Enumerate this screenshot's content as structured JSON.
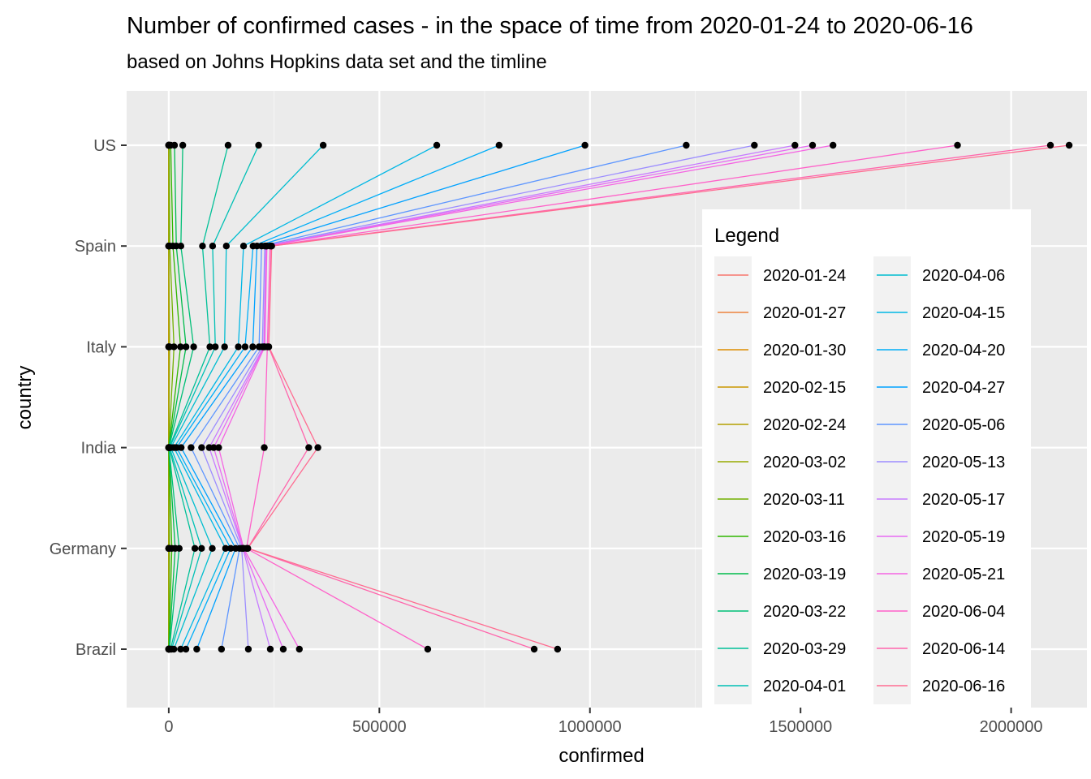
{
  "chart_data": {
    "type": "line",
    "title": "Number of confirmed cases - in the space of time from 2020-01-24 to 2020-06-16",
    "subtitle": "based on Johns Hopkins data set and the timline",
    "xlabel": "confirmed",
    "ylabel": "country",
    "xlim": [
      -100000,
      2180000
    ],
    "x_ticks": [
      0,
      500000,
      1000000,
      1500000,
      2000000
    ],
    "x_tick_labels": [
      "0",
      "500000",
      "1000000",
      "1500000",
      "2000000"
    ],
    "categories": [
      "US",
      "Spain",
      "Italy",
      "India",
      "Germany",
      "Brazil"
    ],
    "grid": true,
    "legend_title": "Legend",
    "legend_position": "right-inside",
    "series": [
      {
        "name": "2020-01-24",
        "color": "#F8766D",
        "values": [
          2,
          0,
          0,
          0,
          0,
          0
        ]
      },
      {
        "name": "2020-01-27",
        "color": "#EC823C",
        "values": [
          5,
          0,
          0,
          0,
          1,
          0
        ]
      },
      {
        "name": "2020-01-30",
        "color": "#DD8D00",
        "values": [
          6,
          0,
          0,
          1,
          4,
          0
        ]
      },
      {
        "name": "2020-02-15",
        "color": "#CA9700",
        "values": [
          15,
          2,
          3,
          3,
          16,
          0
        ]
      },
      {
        "name": "2020-02-24",
        "color": "#B3A000",
        "values": [
          51,
          2,
          229,
          3,
          16,
          0
        ]
      },
      {
        "name": "2020-03-02",
        "color": "#97A900",
        "values": [
          98,
          120,
          2036,
          5,
          159,
          2
        ]
      },
      {
        "name": "2020-03-11",
        "color": "#71B000",
        "values": [
          1281,
          2277,
          12462,
          62,
          1908,
          52
        ]
      },
      {
        "name": "2020-03-16",
        "color": "#2FB600",
        "values": [
          4632,
          9942,
          27980,
          119,
          7272,
          234
        ]
      },
      {
        "name": "2020-03-19",
        "color": "#00BB4B",
        "values": [
          13677,
          17963,
          41035,
          194,
          15320,
          621
        ]
      },
      {
        "name": "2020-03-22",
        "color": "#00BF76",
        "values": [
          33272,
          28768,
          59138,
          396,
          24873,
          1593
        ]
      },
      {
        "name": "2020-03-29",
        "color": "#00C098",
        "values": [
          140886,
          80110,
          97689,
          1024,
          62095,
          4256
        ]
      },
      {
        "name": "2020-04-01",
        "color": "#00C0B5",
        "values": [
          213372,
          104118,
          110574,
          1998,
          77872,
          6836
        ]
      },
      {
        "name": "2020-04-06",
        "color": "#00BDCF",
        "values": [
          366667,
          136675,
          132547,
          4778,
          103374,
          12161
        ]
      },
      {
        "name": "2020-04-15",
        "color": "#00B7E5",
        "values": [
          636350,
          177633,
          165155,
          12322,
          134753,
          28320
        ]
      },
      {
        "name": "2020-04-20",
        "color": "#00AEF8",
        "values": [
          784326,
          200210,
          181228,
          18539,
          147065,
          40743
        ]
      },
      {
        "name": "2020-04-27",
        "color": "#00A1FF",
        "values": [
          988197,
          209465,
          199414,
          29451,
          158758,
          66501
        ]
      },
      {
        "name": "2020-05-06",
        "color": "#5E96FF",
        "values": [
          1228603,
          220325,
          214457,
          52987,
          168162,
          125218
        ]
      },
      {
        "name": "2020-05-13",
        "color": "#9C8DFF",
        "values": [
          1390406,
          228030,
          222104,
          78055,
          173171,
          188974
        ]
      },
      {
        "name": "2020-05-17",
        "color": "#C77CFF",
        "values": [
          1486757,
          230698,
          225435,
          96169,
          175752,
          241080
        ]
      },
      {
        "name": "2020-05-19",
        "color": "#E76BF3",
        "values": [
          1528568,
          232037,
          226699,
          106750,
          176551,
          271885
        ]
      },
      {
        "name": "2020-05-21",
        "color": "#F564E3",
        "values": [
          1577147,
          233037,
          228006,
          118447,
          177827,
          310087
        ]
      },
      {
        "name": "2020-06-04",
        "color": "#FF61C9",
        "values": [
          1872660,
          240660,
          234013,
          226770,
          184472,
          614941
        ]
      },
      {
        "name": "2020-06-14",
        "color": "#FF65AC",
        "values": [
          2093335,
          243605,
          236989,
          332424,
          187267,
          867624
        ]
      },
      {
        "name": "2020-06-16",
        "color": "#FF6C91",
        "values": [
          2137731,
          244328,
          237500,
          354065,
          187671,
          923189
        ]
      }
    ]
  }
}
